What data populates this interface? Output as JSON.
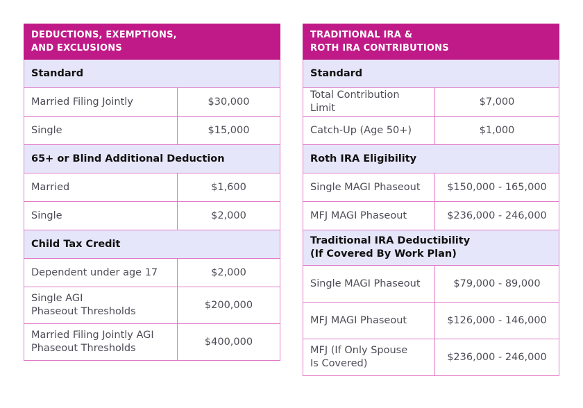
{
  "left_table": {
    "title_line1": "DEDUCTIONS, EXEMPTIONS,",
    "title_line2": "AND EXCLUSIONS",
    "sections": [
      {
        "label": [
          "Standard"
        ],
        "rows": [
          {
            "label": [
              "Married Filing Jointly"
            ],
            "value": "$30,000"
          },
          {
            "label": [
              "Single"
            ],
            "value": "$15,000"
          }
        ]
      },
      {
        "label": [
          "65+ or Blind Additional Deduction"
        ],
        "rows": [
          {
            "label": [
              "Married"
            ],
            "value": "$1,600"
          },
          {
            "label": [
              "Single"
            ],
            "value": "$2,000"
          }
        ]
      },
      {
        "label": [
          "Child Tax Credit"
        ],
        "rows": [
          {
            "label": [
              "Dependent under age 17"
            ],
            "value": "$2,000"
          },
          {
            "label": [
              "Single AGI",
              "Phaseout Thresholds"
            ],
            "value": "$200,000"
          },
          {
            "label": [
              "Married Filing Jointly AGI",
              "Phaseout Thresholds"
            ],
            "value": "$400,000"
          }
        ]
      }
    ]
  },
  "right_table": {
    "title_line1": "TRADITIONAL IRA &",
    "title_line2": "ROTH IRA CONTRIBUTIONS",
    "sections": [
      {
        "label": [
          "Standard"
        ],
        "rows": [
          {
            "label": [
              "Total Contribution Limit"
            ],
            "value": "$7,000"
          },
          {
            "label": [
              "Catch-Up (Age 50+)"
            ],
            "value": "$1,000"
          }
        ]
      },
      {
        "label": [
          "Roth IRA Eligibility"
        ],
        "rows": [
          {
            "label": [
              "Single MAGI Phaseout"
            ],
            "value": "$150,000 - 165,000"
          },
          {
            "label": [
              "MFJ MAGI Phaseout"
            ],
            "value": "$236,000 - 246,000"
          }
        ]
      },
      {
        "label": [
          "Traditional IRA Deductibility",
          "(If Covered By Work Plan)"
        ],
        "rows": [
          {
            "label": [
              "Single MAGI Phaseout"
            ],
            "value": "$79,000 - 89,000"
          },
          {
            "label": [
              "MFJ MAGI Phaseout"
            ],
            "value": "$126,000 - 146,000"
          },
          {
            "label": [
              "MFJ (If Only Spouse",
              "Is Covered)"
            ],
            "value": "$236,000 - 246,000"
          }
        ]
      }
    ]
  },
  "colors": {
    "header_bg": "#c01a88",
    "section_bg": "#e6e6fa",
    "border": "#e07ac8"
  }
}
